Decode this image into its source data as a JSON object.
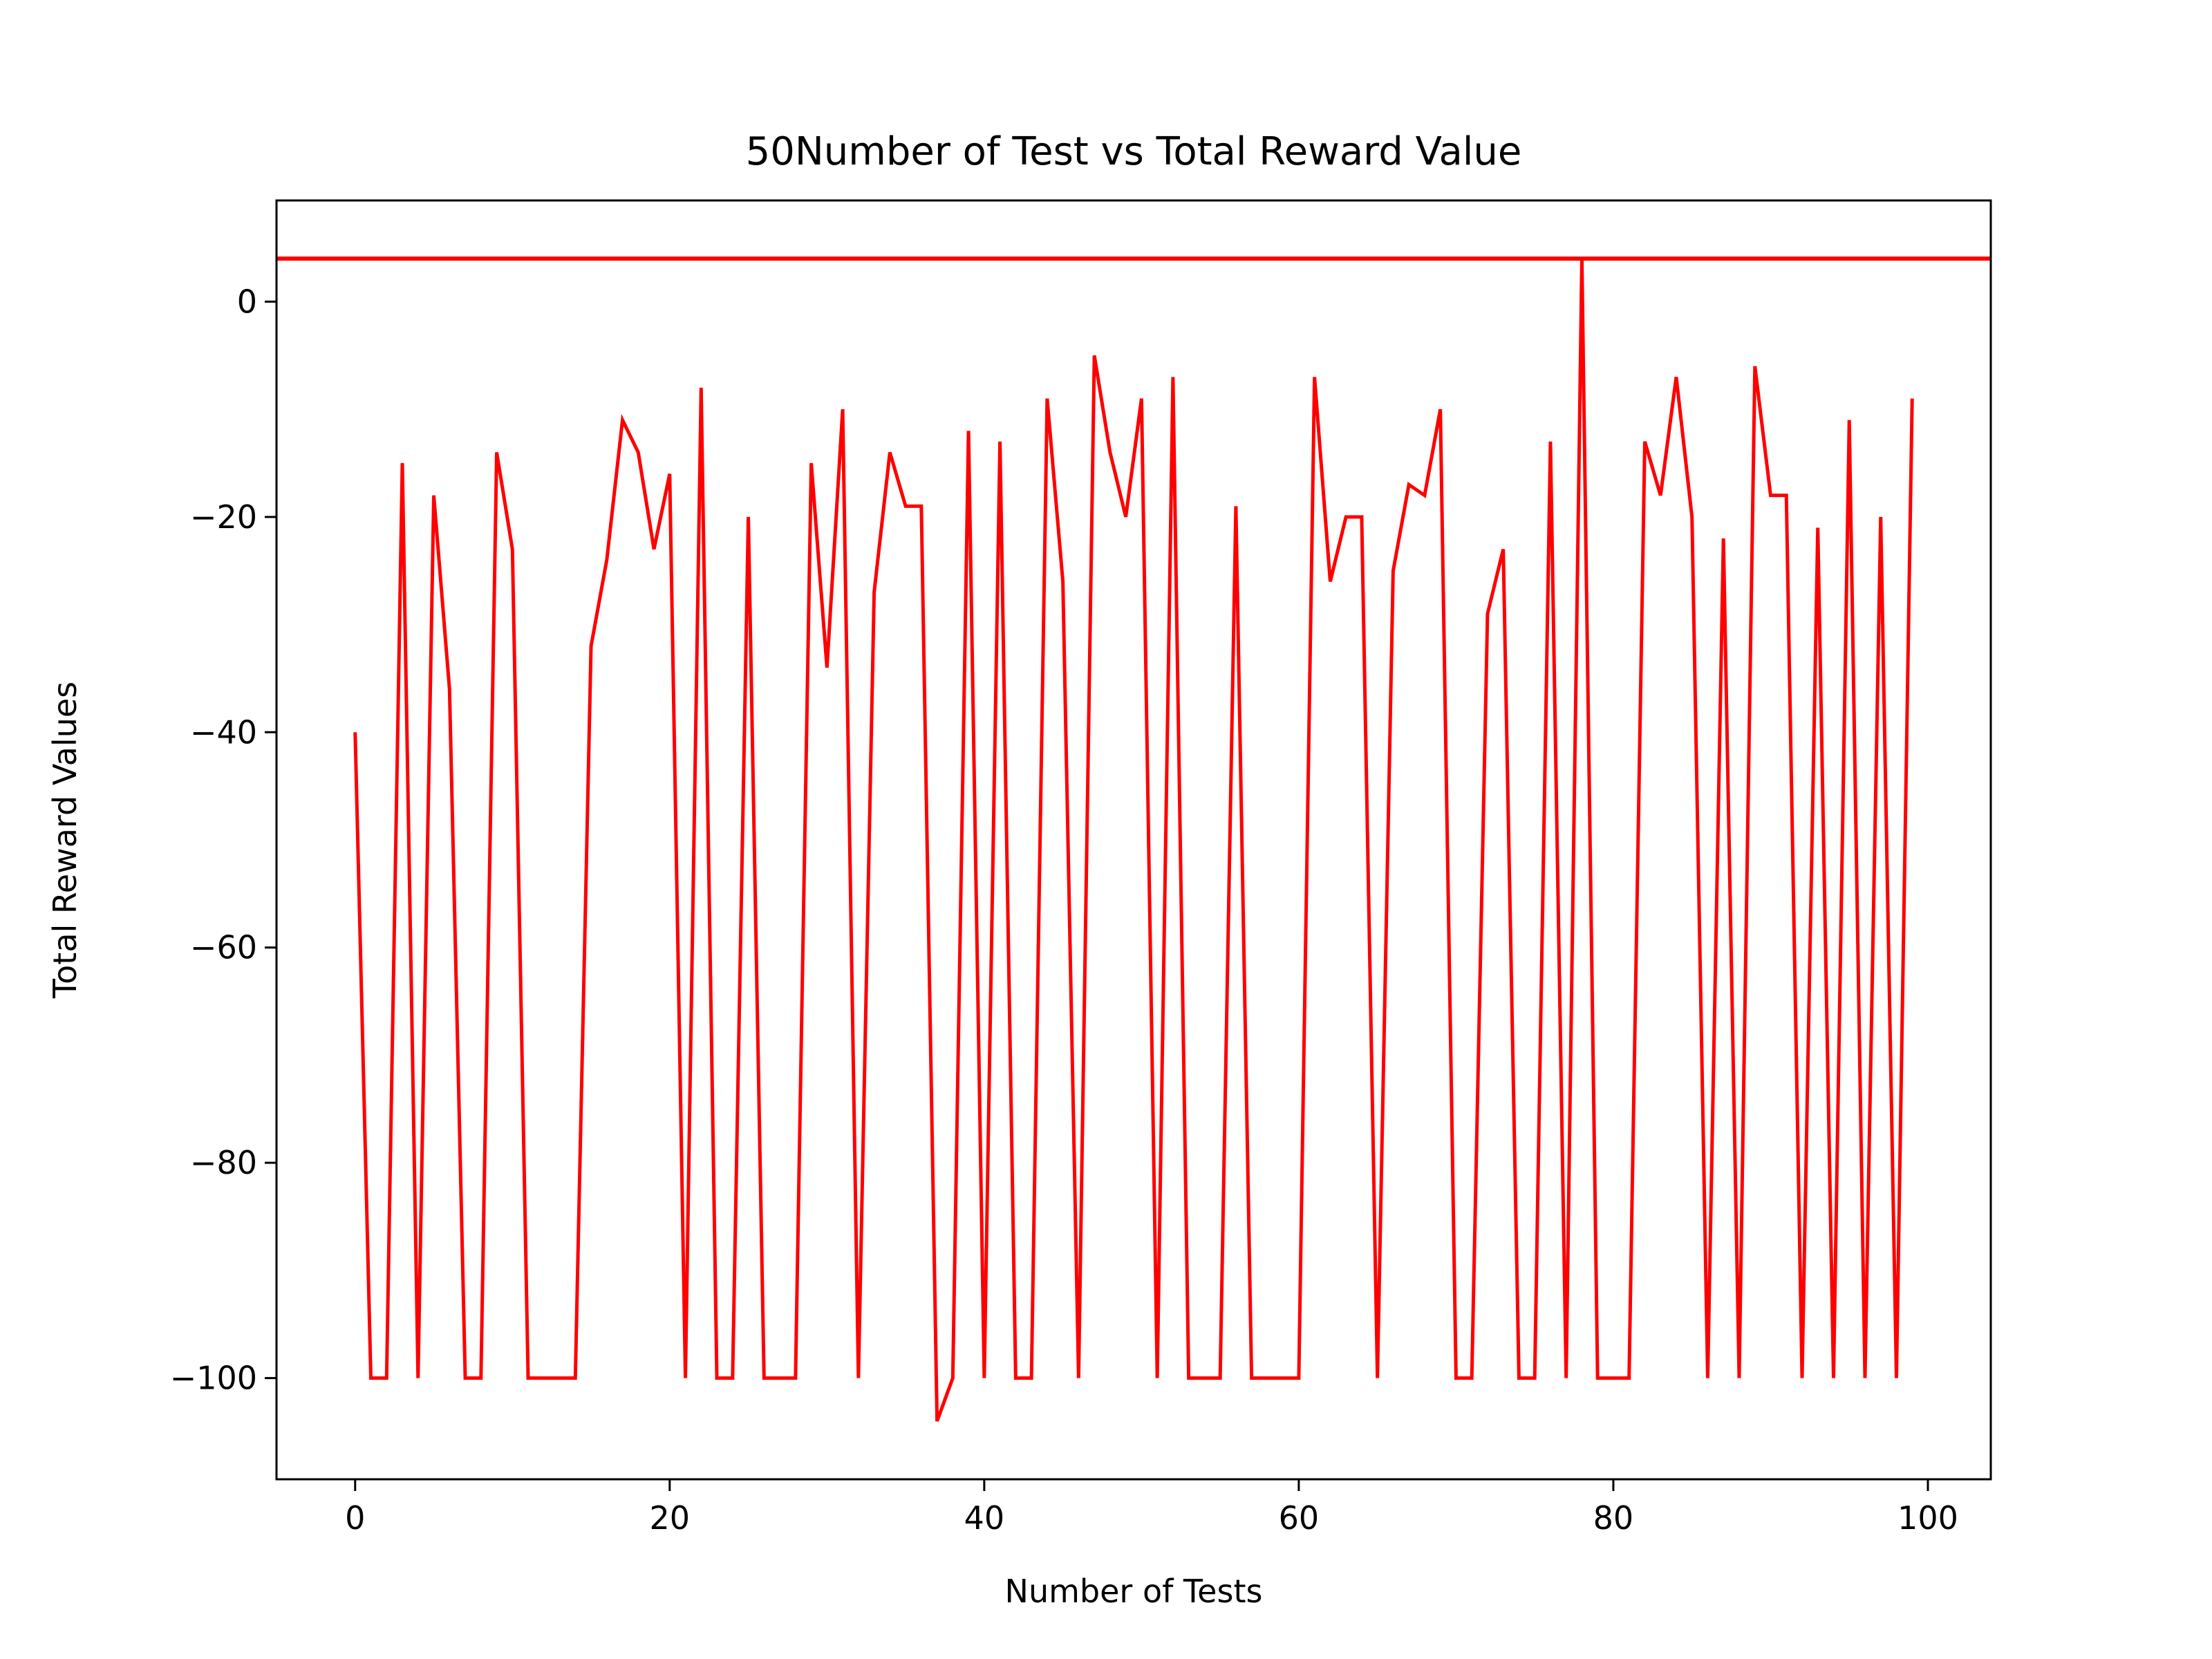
{
  "chart_data": {
    "type": "line",
    "title": "50Number of Test vs Total Reward Value",
    "xlabel": "Number of Tests",
    "ylabel": "Total Reward Values",
    "xlim": [
      -5,
      104
    ],
    "ylim": [
      -109.4,
      9.4
    ],
    "xticks": [
      0,
      20,
      40,
      60,
      80,
      100
    ],
    "yticks": [
      0,
      -20,
      -40,
      -60,
      -80,
      -100
    ],
    "xtick_labels": [
      "0",
      "20",
      "40",
      "60",
      "80",
      "100"
    ],
    "ytick_labels": [
      "0",
      "−20",
      "−40",
      "−60",
      "−80",
      "−100"
    ],
    "grid": false,
    "legend": "none",
    "line_color": "#ff0000",
    "reference_line": {
      "y": 4,
      "color": "#ff0000"
    },
    "series": [
      {
        "x": [
          0,
          1,
          2,
          3,
          4,
          5,
          6,
          7,
          8,
          9,
          10,
          11,
          12,
          13,
          14,
          15,
          16,
          17,
          18,
          19,
          20,
          21,
          22,
          23,
          24,
          25,
          26,
          27,
          28,
          29,
          30,
          31,
          32,
          33,
          34,
          35,
          36,
          37,
          38,
          39,
          40,
          41,
          42,
          43,
          44,
          45,
          46,
          47,
          48,
          49,
          50,
          51,
          52,
          53,
          54,
          55,
          56,
          57,
          58,
          59,
          60,
          61,
          62,
          63,
          64,
          65,
          66,
          67,
          68,
          69,
          70,
          71,
          72,
          73,
          74,
          75,
          76,
          77,
          78,
          79,
          80,
          81,
          82,
          83,
          84,
          85,
          86,
          87,
          88,
          89,
          90,
          91,
          92,
          93,
          94,
          95,
          96,
          97,
          98,
          99
        ],
        "values": [
          -40,
          -100,
          -100,
          -15,
          -100,
          -18,
          -36,
          -100,
          -100,
          -14,
          -23,
          -100,
          -100,
          -100,
          -100,
          -32,
          -24,
          -11,
          -14,
          -23,
          -16,
          -100,
          -8,
          -100,
          -100,
          -20,
          -100,
          -100,
          -100,
          -15,
          -34,
          -10,
          -100,
          -27,
          -14,
          -19,
          -19,
          -104,
          -100,
          -12,
          -100,
          -13,
          -100,
          -100,
          -9,
          -26,
          -100,
          -5,
          -14,
          -20,
          -9,
          -100,
          -7,
          -100,
          -100,
          -100,
          -19,
          -100,
          -100,
          -100,
          -100,
          -7,
          -26,
          -20,
          -20,
          -100,
          -25,
          -17,
          -18,
          -10,
          -100,
          -100,
          -29,
          -23,
          -100,
          -100,
          -13,
          -100,
          4,
          -100,
          -100,
          -100,
          -13,
          -18,
          -7,
          -20,
          -100,
          -22,
          -100,
          -6,
          -18,
          -18,
          -100,
          -21,
          -100,
          -11,
          -100,
          -20,
          -100,
          -9
        ]
      }
    ]
  }
}
